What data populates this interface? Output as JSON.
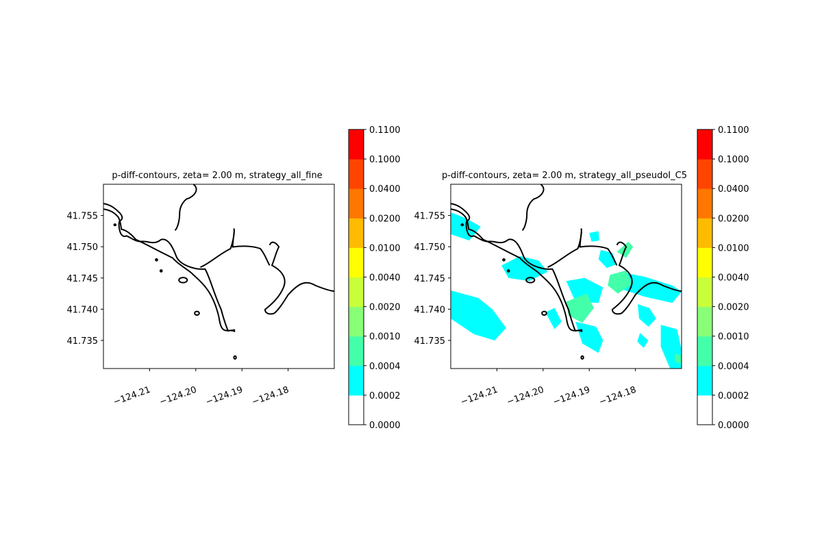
{
  "chart_data": [
    {
      "type": "contour-map",
      "title": "p-diff-contours, zeta= 2.00 m, strategy_all_fine",
      "xlabel": "",
      "ylabel": "",
      "xlim": [
        -124.22,
        -124.17
      ],
      "ylim": [
        41.7305,
        41.76
      ],
      "xticks": [
        -124.21,
        -124.2,
        -124.19,
        -124.18
      ],
      "xtick_labels": [
        "−124.21",
        "−124.20",
        "−124.19",
        "−124.18"
      ],
      "yticks": [
        41.735,
        41.74,
        41.745,
        41.75,
        41.755
      ],
      "ytick_labels": [
        "41.735",
        "41.740",
        "41.745",
        "41.750",
        "41.755"
      ],
      "filled_regions": []
    },
    {
      "type": "contour-map",
      "title": "p-diff-contours, zeta= 2.00 m, strategy_all_pseudoI_C5",
      "xlabel": "",
      "ylabel": "",
      "xlim": [
        -124.22,
        -124.17
      ],
      "ylim": [
        41.7305,
        41.76
      ],
      "xticks": [
        -124.21,
        -124.2,
        -124.19,
        -124.18
      ],
      "xtick_labels": [
        "−124.21",
        "−124.20",
        "−124.19",
        "−124.18"
      ],
      "yticks": [
        41.735,
        41.74,
        41.745,
        41.75,
        41.755
      ],
      "ytick_labels": [
        "41.735",
        "41.740",
        "41.745",
        "41.750",
        "41.755"
      ],
      "filled_regions": [
        {
          "level": "0.0002-0.0004",
          "color": "#00ffff",
          "polygon": [
            [
              -124.22,
              41.7555
            ],
            [
              -124.2165,
              41.7545
            ],
            [
              -124.2135,
              41.7532
            ],
            [
              -124.216,
              41.751
            ],
            [
              -124.22,
              41.752
            ]
          ]
        },
        {
          "level": "0.0002-0.0004",
          "color": "#00ffff",
          "polygon": [
            [
              -124.22,
              41.743
            ],
            [
              -124.214,
              41.7418
            ],
            [
              -124.211,
              41.74
            ],
            [
              -124.208,
              41.737
            ],
            [
              -124.2105,
              41.735
            ],
            [
              -124.215,
              41.736
            ],
            [
              -124.22,
              41.7385
            ]
          ]
        },
        {
          "level": "0.0002-0.0004",
          "color": "#00ffff",
          "polygon": [
            [
              -124.209,
              41.747
            ],
            [
              -124.205,
              41.7485
            ],
            [
              -124.201,
              41.7478
            ],
            [
              -124.199,
              41.746
            ],
            [
              -124.203,
              41.7445
            ],
            [
              -124.2075,
              41.745
            ]
          ]
        },
        {
          "level": "0.0002-0.0004",
          "color": "#00ffff",
          "polygon": [
            [
              -124.1995,
              41.7395
            ],
            [
              -124.1975,
              41.7402
            ],
            [
              -124.196,
              41.738
            ],
            [
              -124.1975,
              41.7368
            ]
          ]
        },
        {
          "level": "0.0002-0.0004",
          "color": "#00ffff",
          "polygon": [
            [
              -124.195,
              41.7445
            ],
            [
              -124.191,
              41.745
            ],
            [
              -124.187,
              41.7435
            ],
            [
              -124.188,
              41.741
            ],
            [
              -124.193,
              41.7412
            ]
          ]
        },
        {
          "level": "0.0002-0.0004",
          "color": "#00ffff",
          "polygon": [
            [
              -124.193,
              41.738
            ],
            [
              -124.1885,
              41.7372
            ],
            [
              -124.187,
              41.735
            ],
            [
              -124.188,
              41.733
            ],
            [
              -124.1915,
              41.7345
            ]
          ]
        },
        {
          "level": "0.0002-0.0004",
          "color": "#00ffff",
          "polygon": [
            [
              -124.19,
              41.7522
            ],
            [
              -124.188,
              41.7525
            ],
            [
              -124.1878,
              41.751
            ],
            [
              -124.1895,
              41.7508
            ]
          ]
        },
        {
          "level": "0.0002-0.0004",
          "color": "#00ffff",
          "polygon": [
            [
              -124.1875,
              41.7495
            ],
            [
              -124.185,
              41.749
            ],
            [
              -124.184,
              41.7472
            ],
            [
              -124.1862,
              41.7466
            ],
            [
              -124.188,
              41.748
            ]
          ]
        },
        {
          "level": "0.0002-0.0004",
          "color": "#00ffff",
          "polygon": [
            [
              -124.1835,
              41.746
            ],
            [
              -124.178,
              41.7452
            ],
            [
              -124.172,
              41.7438
            ],
            [
              -124.17,
              41.7428
            ],
            [
              -124.172,
              41.741
            ],
            [
              -124.178,
              41.742
            ],
            [
              -124.183,
              41.7432
            ]
          ]
        },
        {
          "level": "0.0002-0.0004",
          "color": "#00ffff",
          "polygon": [
            [
              -124.1795,
              41.7408
            ],
            [
              -124.177,
              41.7402
            ],
            [
              -124.1755,
              41.7385
            ],
            [
              -124.1772,
              41.7372
            ],
            [
              -124.1792,
              41.7385
            ]
          ]
        },
        {
          "level": "0.0002-0.0004",
          "color": "#00ffff",
          "polygon": [
            [
              -124.1745,
              41.7375
            ],
            [
              -124.171,
              41.7368
            ],
            [
              -124.17,
              41.7335
            ],
            [
              -124.17,
              41.7305
            ],
            [
              -124.1725,
              41.7305
            ],
            [
              -124.1745,
              41.734
            ]
          ]
        },
        {
          "level": "0.0002-0.0004",
          "color": "#00ffff",
          "polygon": [
            [
              -124.179,
              41.7362
            ],
            [
              -124.1772,
              41.735
            ],
            [
              -124.1782,
              41.7338
            ],
            [
              -124.1796,
              41.7348
            ]
          ]
        },
        {
          "level": "0.0004-0.0010",
          "color": "#44ffaa",
          "polygon": [
            [
              -124.195,
              41.7412
            ],
            [
              -124.1905,
              41.7425
            ],
            [
              -124.189,
              41.7402
            ],
            [
              -124.1915,
              41.7378
            ],
            [
              -124.1945,
              41.739
            ]
          ]
        },
        {
          "level": "0.0004-0.0010",
          "color": "#44ffaa",
          "polygon": [
            [
              -124.1855,
              41.7455
            ],
            [
              -124.182,
              41.7462
            ],
            [
              -124.1808,
              41.744
            ],
            [
              -124.1838,
              41.7425
            ],
            [
              -124.186,
              41.7438
            ]
          ]
        },
        {
          "level": "0.0004-0.0010",
          "color": "#44ffaa",
          "polygon": [
            [
              -124.184,
              41.7492
            ],
            [
              -124.1815,
              41.7508
            ],
            [
              -124.1805,
              41.75
            ],
            [
              -124.182,
              41.7482
            ]
          ]
        },
        {
          "level": "0.0004-0.0010",
          "color": "#44ffaa",
          "polygon": [
            [
              -124.1715,
              41.733
            ],
            [
              -124.17,
              41.7325
            ],
            [
              -124.17,
              41.7312
            ],
            [
              -124.1715,
              41.7316
            ]
          ]
        }
      ],
      "coastline_color": "#000000"
    }
  ],
  "colorbar": {
    "levels": [
      "0.0000",
      "0.0002",
      "0.0004",
      "0.0010",
      "0.0020",
      "0.0040",
      "0.0100",
      "0.0200",
      "0.0400",
      "0.1000",
      "0.1100"
    ],
    "colors": [
      "#ffffff",
      "#00ffff",
      "#44ffaa",
      "#88ff77",
      "#c8ff3a",
      "#ffff00",
      "#ffbb00",
      "#ff7700",
      "#ff4400",
      "#ff0000"
    ]
  }
}
